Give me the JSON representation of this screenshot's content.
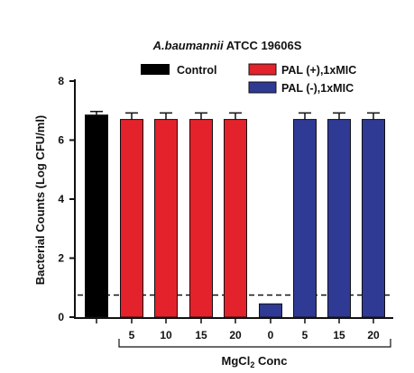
{
  "chart_data": {
    "type": "bar",
    "title_italic": "A.baumannii",
    "title_rest": " ATCC 19606S",
    "ylabel": "Bacterial Counts (Log CFU/ml)",
    "xlabel_main": "MgCl",
    "xlabel_sub": "2",
    "xlabel_tail": " Conc",
    "ylim": [
      0,
      8
    ],
    "yticks": [
      "0",
      "2",
      "4",
      "6",
      "8"
    ],
    "detection_limit": 0.75,
    "legend": [
      {
        "label": "Control",
        "color": "#000000"
      },
      {
        "label": "PAL (+),1xMIC",
        "color": "#e4222b"
      },
      {
        "label": "PAL (-),1xMIC",
        "color": "#2e3a93"
      }
    ],
    "bars": [
      {
        "label": "",
        "value": 6.85,
        "error": 0.12,
        "series": "Control",
        "color": "#000000"
      },
      {
        "label": "5",
        "value": 6.7,
        "error": 0.22,
        "series": "PAL (+),1xMIC",
        "color": "#e4222b"
      },
      {
        "label": "10",
        "value": 6.7,
        "error": 0.22,
        "series": "PAL (+),1xMIC",
        "color": "#e4222b"
      },
      {
        "label": "15",
        "value": 6.7,
        "error": 0.22,
        "series": "PAL (+),1xMIC",
        "color": "#e4222b"
      },
      {
        "label": "20",
        "value": 6.7,
        "error": 0.22,
        "series": "PAL (+),1xMIC",
        "color": "#e4222b"
      },
      {
        "label": "0",
        "value": 0.45,
        "error": 0,
        "series": "PAL (-),1xMIC",
        "color": "#2e3a93"
      },
      {
        "label": "5",
        "value": 6.7,
        "error": 0.22,
        "series": "PAL (-),1xMIC",
        "color": "#2e3a93"
      },
      {
        "label": "15",
        "value": 6.7,
        "error": 0.22,
        "series": "PAL (-),1xMIC",
        "color": "#2e3a93"
      },
      {
        "label": "20",
        "value": 6.7,
        "error": 0.22,
        "series": "PAL (-),1xMIC",
        "color": "#2e3a93"
      }
    ]
  }
}
